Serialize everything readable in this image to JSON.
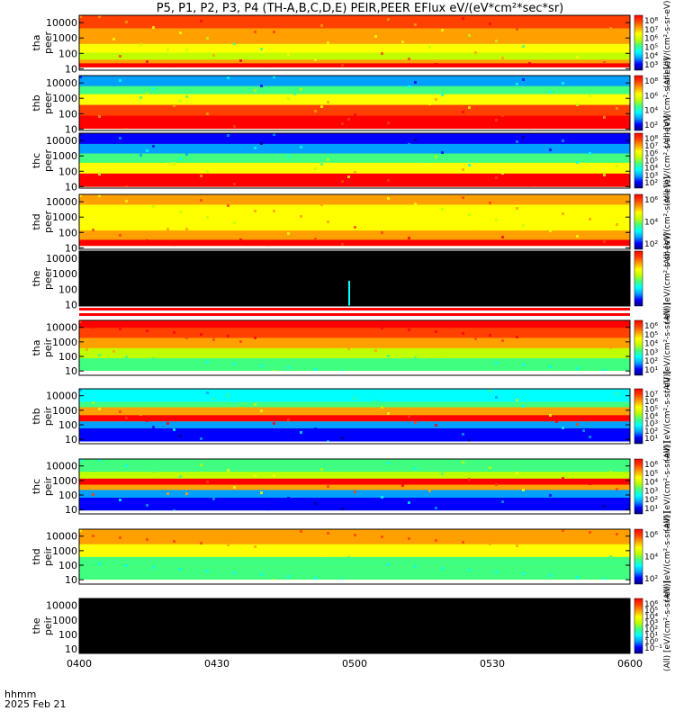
{
  "chart_data": {
    "type": "heatmap",
    "title": "P5, P1, P2, P3, P4 (TH-A,B,C,D,E) PEIR,PEER EFlux eV/(eV*cm²*sec*sr)",
    "x_ticks": [
      "0400",
      "0430",
      "0500",
      "0530",
      "0600"
    ],
    "x_range": [
      "04:00",
      "06:00"
    ],
    "footer": {
      "label": "hhmm",
      "date": "2025 Feb 21"
    },
    "panels": [
      {
        "probe": "tha",
        "species": "peer",
        "y_ticks": [
          "10000",
          "1000",
          "100",
          "10"
        ],
        "y_scale": "log",
        "y_range": [
          8,
          30000
        ],
        "colorbar_label": "(All) [eV/(cm²-s-sr-eV)]",
        "colorbar_ticks": [
          "10⁸",
          "10⁷",
          "10⁶",
          "10⁵",
          "10⁴",
          "10³"
        ],
        "state": "data"
      },
      {
        "probe": "thb",
        "species": "peer",
        "y_ticks": [
          "10000",
          "1000",
          "100",
          "10"
        ],
        "y_scale": "log",
        "y_range": [
          8,
          30000
        ],
        "colorbar_label": "(All) [eV/(cm²-s-sr-eV)]",
        "colorbar_ticks": [
          "10⁸",
          "10⁶",
          "10⁴",
          "10²"
        ],
        "state": "data"
      },
      {
        "probe": "thc",
        "species": "peer",
        "y_ticks": [
          "10000",
          "1000",
          "100",
          "10"
        ],
        "y_scale": "log",
        "y_range": [
          8,
          30000
        ],
        "colorbar_label": "(All) [eV/(cm²-s-sr-eV)]",
        "colorbar_ticks": [
          "10⁸",
          "10⁷",
          "10⁶",
          "10⁵",
          "10⁴",
          "10³",
          "10²"
        ],
        "state": "data"
      },
      {
        "probe": "thd",
        "species": "peer",
        "y_ticks": [
          "10000",
          "1000",
          "100",
          "10"
        ],
        "y_scale": "log",
        "y_range": [
          8,
          30000
        ],
        "colorbar_label": "(All) [eV/(cm²-s-sr-eV)]",
        "colorbar_ticks": [
          "10⁶",
          "10⁴",
          "10²"
        ],
        "state": "data"
      },
      {
        "probe": "the",
        "species": "peer",
        "y_ticks": [
          "10000",
          "1000",
          "100",
          "10"
        ],
        "y_scale": "log",
        "y_range": [
          8,
          30000
        ],
        "colorbar_label": "(All) [eV/(cm²-s-sr-eV)]",
        "colorbar_ticks": [],
        "state": "no_data"
      },
      {
        "probe": "tha",
        "species": "peir",
        "y_ticks": [
          "10000",
          "1000",
          "100",
          "10"
        ],
        "y_scale": "log",
        "y_range": [
          5,
          30000
        ],
        "colorbar_label": "(All) [eV/(cm²-s-sr-eV)]",
        "colorbar_ticks": [
          "10⁶",
          "10⁵",
          "10⁴",
          "10³",
          "10²",
          "10¹"
        ],
        "state": "data"
      },
      {
        "probe": "thb",
        "species": "peir",
        "y_ticks": [
          "10000",
          "1000",
          "100",
          "10"
        ],
        "y_scale": "log",
        "y_range": [
          5,
          30000
        ],
        "colorbar_label": "(All) [eV/(cm²-s-sr-eV)]",
        "colorbar_ticks": [
          "10⁷",
          "10⁶",
          "10⁵",
          "10⁴",
          "10³",
          "10²",
          "10¹"
        ],
        "state": "data"
      },
      {
        "probe": "thc",
        "species": "peir",
        "y_ticks": [
          "10000",
          "1000",
          "100",
          "10"
        ],
        "y_scale": "log",
        "y_range": [
          5,
          30000
        ],
        "colorbar_label": "(All) [eV/(cm²-s-sr-eV)]",
        "colorbar_ticks": [
          "10⁶",
          "10⁵",
          "10⁴",
          "10³",
          "10²",
          "10¹"
        ],
        "state": "data"
      },
      {
        "probe": "thd",
        "species": "peir",
        "y_ticks": [
          "10000",
          "1000",
          "100",
          "10"
        ],
        "y_scale": "log",
        "y_range": [
          5,
          30000
        ],
        "colorbar_label": "(All) [eV/(cm²-s-sr-eV)]",
        "colorbar_ticks": [
          "10⁶",
          "10⁴",
          "10²"
        ],
        "state": "data"
      },
      {
        "probe": "the",
        "species": "peir",
        "y_ticks": [
          "10000",
          "1000",
          "100",
          "10"
        ],
        "y_scale": "log",
        "y_range": [
          5,
          30000
        ],
        "colorbar_label": "(All) [eV/(cm²-s-sr-eV)]",
        "colorbar_ticks": [
          "10⁶",
          "10⁵",
          "10⁴",
          "10³",
          "10²",
          "10¹",
          "10⁰",
          "10⁻¹"
        ],
        "state": "no_data"
      }
    ],
    "colors": {
      "background": "#ffffff",
      "no_data": "#000000",
      "separator": "#ff0000",
      "colormap": [
        "#000080",
        "#0000ff",
        "#00a0ff",
        "#00ffff",
        "#40ff80",
        "#c0ff00",
        "#ffff00",
        "#ffa000",
        "#ff4000",
        "#ff0000"
      ]
    },
    "grid": false
  }
}
